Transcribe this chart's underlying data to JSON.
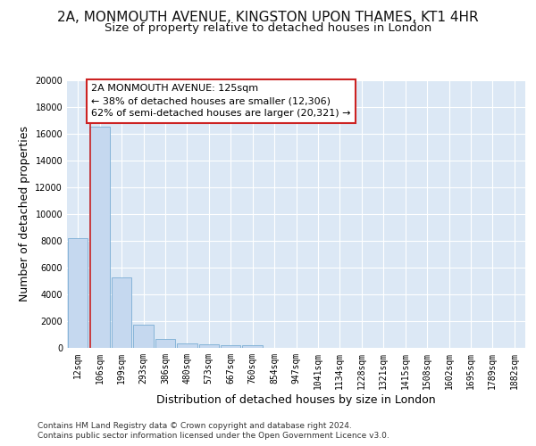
{
  "title_line1": "2A, MONMOUTH AVENUE, KINGSTON UPON THAMES, KT1 4HR",
  "title_line2": "Size of property relative to detached houses in London",
  "xlabel": "Distribution of detached houses by size in London",
  "ylabel": "Number of detached properties",
  "categories": [
    "12sqm",
    "106sqm",
    "199sqm",
    "293sqm",
    "386sqm",
    "480sqm",
    "573sqm",
    "667sqm",
    "760sqm",
    "854sqm",
    "947sqm",
    "1041sqm",
    "1134sqm",
    "1228sqm",
    "1321sqm",
    "1415sqm",
    "1508sqm",
    "1602sqm",
    "1695sqm",
    "1789sqm",
    "1882sqm"
  ],
  "values": [
    8200,
    16500,
    5300,
    1750,
    700,
    350,
    270,
    210,
    185,
    0,
    0,
    0,
    0,
    0,
    0,
    0,
    0,
    0,
    0,
    0,
    0
  ],
  "bar_color": "#c5d8ef",
  "bar_edge_color": "#7aadd4",
  "highlight_line_color": "#cc2222",
  "annotation_line1": "2A MONMOUTH AVENUE: 125sqm",
  "annotation_line2": "← 38% of detached houses are smaller (12,306)",
  "annotation_line3": "62% of semi-detached houses are larger (20,321) →",
  "annotation_box_color": "#ffffff",
  "annotation_box_edge": "#cc2222",
  "footer_line1": "Contains HM Land Registry data © Crown copyright and database right 2024.",
  "footer_line2": "Contains public sector information licensed under the Open Government Licence v3.0.",
  "ylim": [
    0,
    20000
  ],
  "yticks": [
    0,
    2000,
    4000,
    6000,
    8000,
    10000,
    12000,
    14000,
    16000,
    18000,
    20000
  ],
  "fig_bg": "#ffffff",
  "plot_bg": "#dce8f5",
  "grid_color": "#ffffff",
  "title_fontsize": 11,
  "subtitle_fontsize": 9.5,
  "axis_label_fontsize": 9,
  "tick_fontsize": 7,
  "footer_fontsize": 6.5,
  "annotation_fontsize": 8
}
